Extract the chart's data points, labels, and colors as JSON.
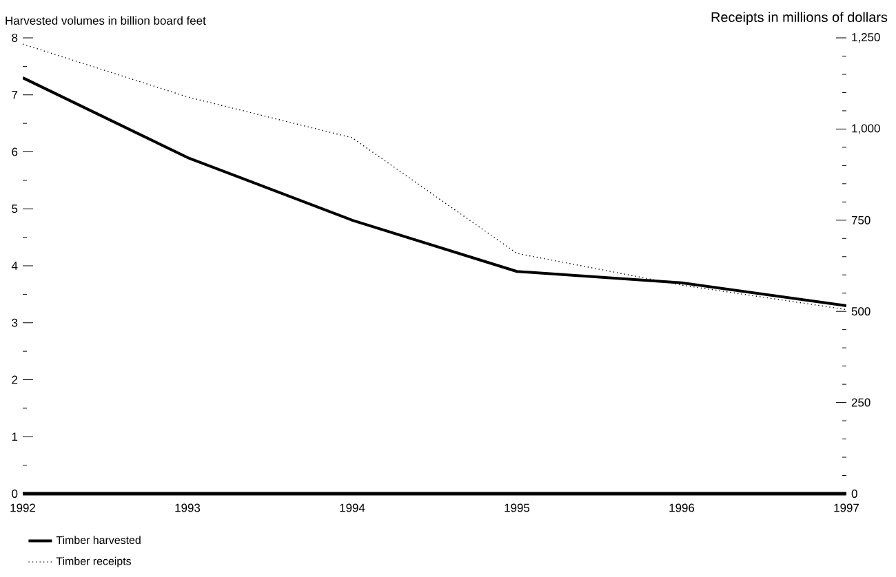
{
  "chart_data": {
    "type": "line",
    "ylabel": "Harvested volumes in billion board feet",
    "y2label": "Receipts in millions of dollars",
    "x": [
      1992,
      1993,
      1994,
      1995,
      1996,
      1997
    ],
    "series": [
      {
        "name": "Timber harvested",
        "color": "#000000",
        "line_style": "solid",
        "values": [
          7.3,
          5.9,
          4.8,
          3.9,
          3.7,
          3.3
        ]
      },
      {
        "name": "Timber receipts",
        "color": "#000000",
        "line_style": "dotted",
        "axis": "y2",
        "values": [
          1233,
          1088,
          976,
          659,
          572,
          505
        ]
      }
    ],
    "xlim": [
      1992,
      1997
    ],
    "xticks": [
      1992,
      1993,
      1994,
      1995,
      1996,
      1997
    ],
    "ylim": [
      0,
      8
    ],
    "yticks": [
      0,
      {
        "value": 0.5,
        "label": null
      },
      1,
      {
        "value": 1.5,
        "label": null
      },
      2,
      {
        "value": 2.5,
        "label": null
      },
      3,
      {
        "value": 3.5,
        "label": null
      },
      4,
      {
        "value": 4.5,
        "label": null
      },
      5,
      {
        "value": 5.5,
        "label": null
      },
      6,
      {
        "value": 6.5,
        "label": null
      },
      7,
      {
        "value": 7.5,
        "label": null
      },
      8
    ],
    "y2lim": [
      0,
      1250
    ],
    "y2ticks": [
      0,
      {
        "value": 50,
        "label": null
      },
      {
        "value": 100,
        "label": null
      },
      {
        "value": 150,
        "label": null
      },
      {
        "value": 200,
        "label": null
      },
      250,
      {
        "value": 300,
        "label": null
      },
      {
        "value": 350,
        "label": null
      },
      {
        "value": 400,
        "label": null
      },
      {
        "value": 450,
        "label": null
      },
      500,
      {
        "value": 550,
        "label": null
      },
      {
        "value": 600,
        "label": null
      },
      {
        "value": 650,
        "label": null
      },
      {
        "value": 700,
        "label": null
      },
      750,
      {
        "value": 800,
        "label": null
      },
      {
        "value": 850,
        "label": null
      },
      {
        "value": 900,
        "label": null
      },
      {
        "value": 950,
        "label": null
      },
      {
        "value": 1000,
        "label": "1,000"
      },
      {
        "value": 1050,
        "label": null
      },
      {
        "value": 1100,
        "label": null
      },
      {
        "value": 1150,
        "label": null
      },
      {
        "value": 1200,
        "label": null
      },
      {
        "value": 1250,
        "label": "1,250"
      }
    ],
    "grid": false,
    "legend": "bottom left"
  }
}
